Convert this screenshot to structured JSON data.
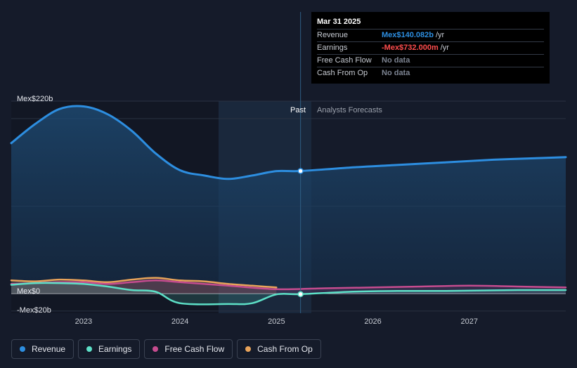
{
  "chart_data": {
    "type": "line",
    "x_ticks": [
      "2023",
      "2024",
      "2025",
      "2026",
      "2027"
    ],
    "y_ticks": [
      {
        "value": 220,
        "label": "Mex$220b"
      },
      {
        "value": 0,
        "label": "Mex$0"
      },
      {
        "value": -20,
        "label": "-Mex$20b"
      }
    ],
    "ylim": [
      -22,
      230
    ],
    "xlim": [
      2022.25,
      2028.0
    ],
    "past_label": "Past",
    "forecast_label": "Analysts Forecasts",
    "divider_x": 2025.25,
    "series": [
      {
        "name": "Revenue",
        "color": "#2d8ee0",
        "x": [
          2022.25,
          2022.5,
          2022.75,
          2023.0,
          2023.25,
          2023.5,
          2023.75,
          2024.0,
          2024.25,
          2024.5,
          2024.75,
          2025.0,
          2025.25,
          2025.75,
          2026.25,
          2026.75,
          2027.25,
          2027.75,
          2028.0
        ],
        "values": [
          172,
          194,
          211,
          214,
          205,
          186,
          160,
          141,
          135,
          131,
          135,
          140,
          140.082,
          144,
          147,
          150,
          153,
          155,
          156
        ]
      },
      {
        "name": "Earnings",
        "color": "#5de0c7",
        "x": [
          2022.25,
          2022.5,
          2022.75,
          2023.0,
          2023.25,
          2023.5,
          2023.75,
          2024.0,
          2024.5,
          2024.75,
          2025.0,
          2025.25,
          2025.75,
          2026.25,
          2026.75,
          2027.5,
          2028.0
        ],
        "values": [
          10,
          12,
          12,
          11,
          8,
          4,
          2,
          -11,
          -12,
          -11,
          -1,
          -0.732,
          2,
          3,
          3,
          4,
          4
        ]
      },
      {
        "name": "Free Cash Flow",
        "color": "#c64c8f",
        "x": [
          2022.25,
          2022.5,
          2022.75,
          2023.0,
          2023.25,
          2023.5,
          2023.75,
          2024.0,
          2024.5,
          2025.0,
          2025.5,
          2026.0,
          2026.5,
          2027.0,
          2027.5,
          2028.0
        ],
        "values": [
          11,
          12,
          13,
          13,
          11,
          13,
          15,
          13,
          9,
          5,
          6,
          7,
          8,
          9,
          8,
          7
        ]
      },
      {
        "name": "Cash From Op",
        "color": "#e8a35a",
        "x": [
          2022.25,
          2022.5,
          2022.75,
          2023.0,
          2023.25,
          2023.5,
          2023.75,
          2024.0,
          2024.25,
          2024.5,
          2024.75,
          2025.0
        ],
        "values": [
          15,
          14,
          16,
          15,
          13,
          16,
          18,
          15,
          14,
          11,
          9,
          7
        ]
      }
    ],
    "highlight_points": [
      {
        "series": "Revenue",
        "x": 2025.25,
        "value": 140.082
      },
      {
        "series": "Earnings",
        "x": 2025.25,
        "value": -0.732
      }
    ]
  },
  "tooltip": {
    "date": "Mar 31 2025",
    "rows": [
      {
        "label": "Revenue",
        "value": "Mex$140.082b",
        "unit": "/yr",
        "color": "#2d8ee0"
      },
      {
        "label": "Earnings",
        "value": "-Mex$732.000m",
        "unit": "/yr",
        "color": "#ff4d4d"
      },
      {
        "label": "Free Cash Flow",
        "value": "No data",
        "unit": "",
        "color": "#7c8391"
      },
      {
        "label": "Cash From Op",
        "value": "No data",
        "unit": "",
        "color": "#7c8391"
      }
    ]
  },
  "legend": [
    {
      "label": "Revenue",
      "color": "#2d8ee0"
    },
    {
      "label": "Earnings",
      "color": "#5de0c7"
    },
    {
      "label": "Free Cash Flow",
      "color": "#c64c8f"
    },
    {
      "label": "Cash From Op",
      "color": "#e8a35a"
    }
  ]
}
